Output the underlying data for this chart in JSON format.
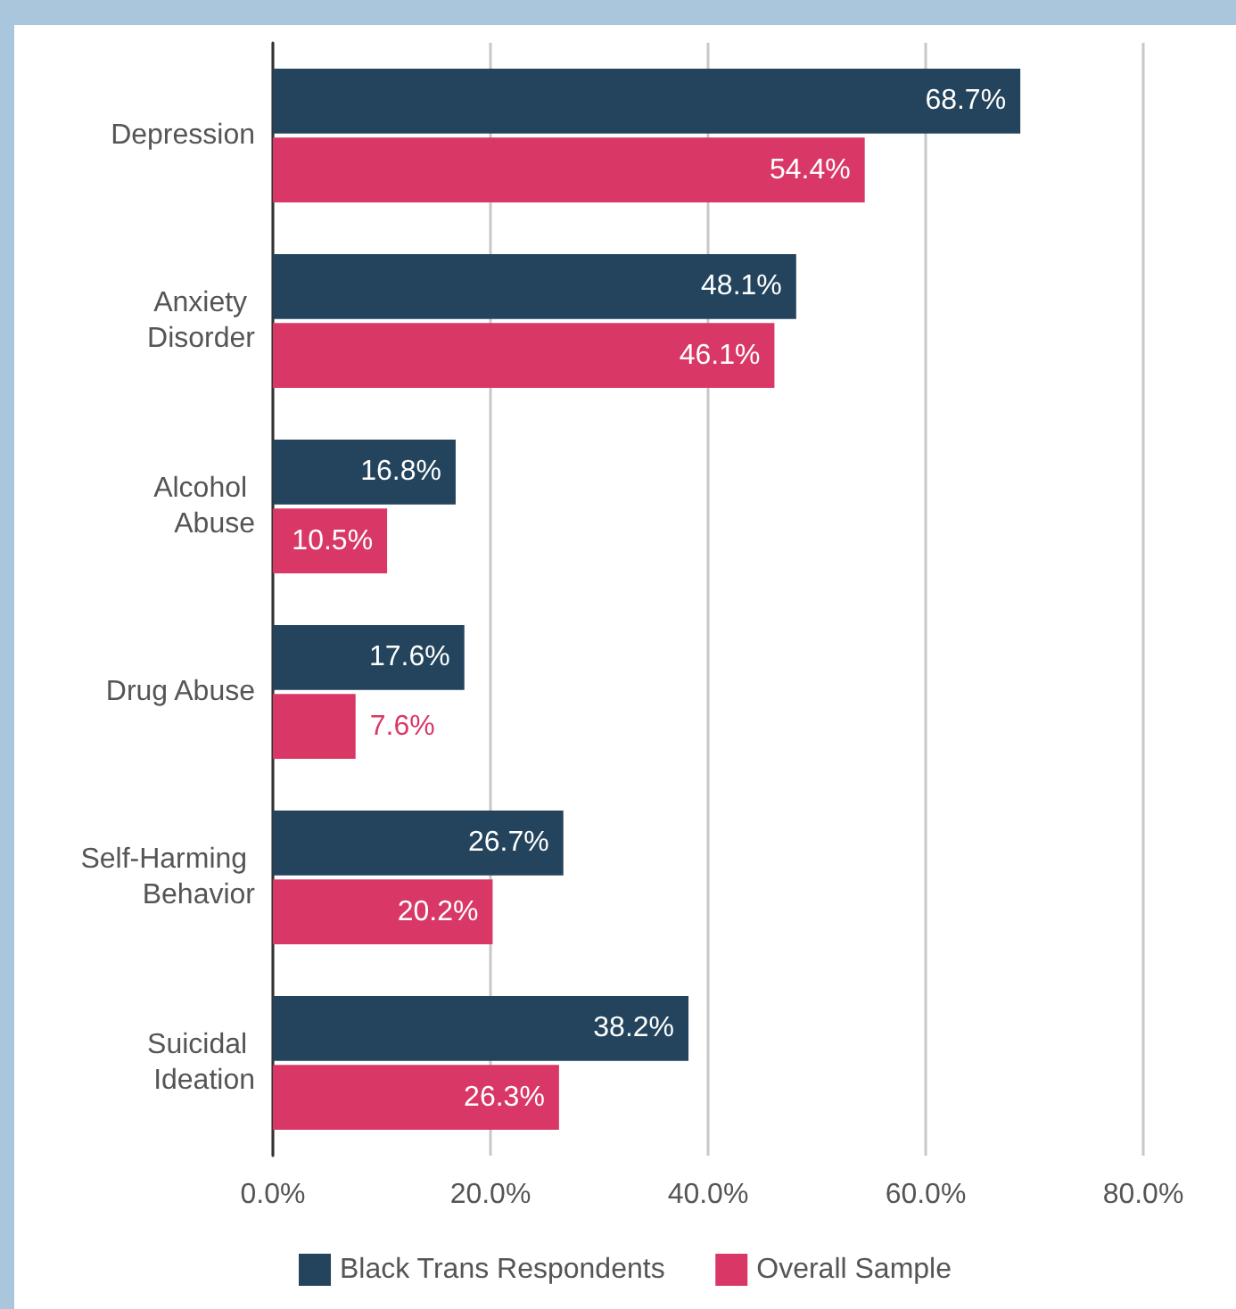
{
  "chart_data": {
    "type": "bar",
    "orientation": "horizontal",
    "categories": [
      "Depression",
      "Anxiety Disorder",
      "Alcohol Abuse",
      "Drug Abuse",
      "Self-Harming Behavior",
      "Suicidal Ideation"
    ],
    "series": [
      {
        "name": "Black Trans Respondents",
        "color": "#23445c",
        "values": [
          68.7,
          48.1,
          16.8,
          17.6,
          26.7,
          38.2
        ],
        "value_labels": [
          "68.7%",
          "48.1%",
          "16.8%",
          "17.6%",
          "26.7%",
          "38.2%"
        ]
      },
      {
        "name": "Overall Sample",
        "color": "#d93866",
        "values": [
          54.4,
          46.1,
          10.5,
          7.6,
          20.2,
          26.3
        ],
        "value_labels": [
          "54.4%",
          "46.1%",
          "10.5%",
          "7.6%",
          "20.2%",
          "26.3%"
        ]
      }
    ],
    "xlim": [
      0,
      80
    ],
    "xticks": [
      {
        "value": 0,
        "label": "0.0%"
      },
      {
        "value": 20,
        "label": "20.0%"
      },
      {
        "value": 40,
        "label": "40.0%"
      },
      {
        "value": 60,
        "label": "60.0%"
      },
      {
        "value": 80,
        "label": "80.0%"
      }
    ],
    "grid": "x",
    "legend": "bottom"
  }
}
